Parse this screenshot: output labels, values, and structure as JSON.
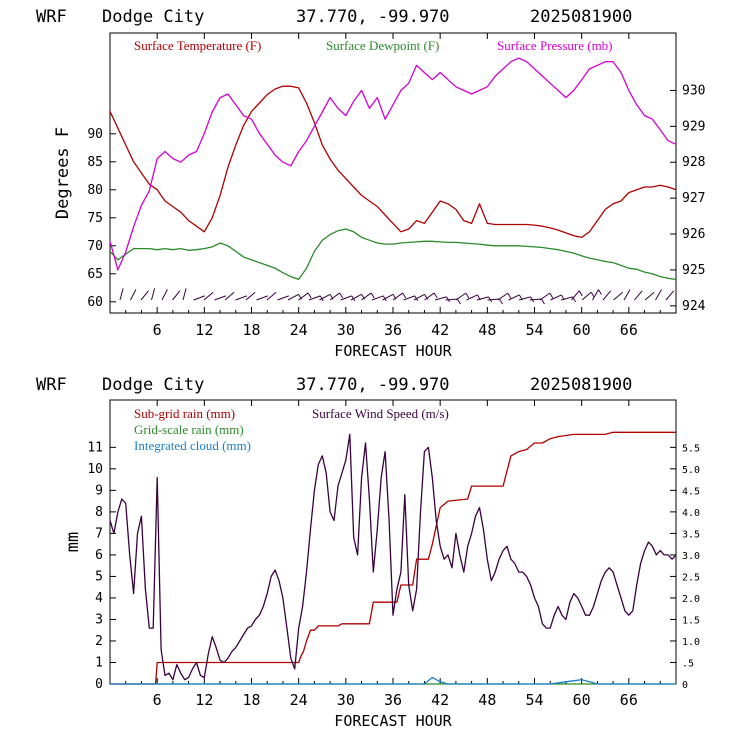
{
  "colors": {
    "temperature": "#b00000",
    "dewpoint": "#2a8a2a",
    "pressure": "#d400d4",
    "subgrid_rain": "#b00000",
    "gridscale_rain": "#2a8a2a",
    "cloud": "#1a7fd0",
    "wind": "#3a0040",
    "axis": "#000000"
  },
  "chart_data": [
    {
      "type": "line",
      "header": {
        "model": "WRF",
        "station": "Dodge City",
        "coords": "37.770, -99.970",
        "run": "2025081900"
      },
      "xlabel": "FORECAST HOUR",
      "ylabel": "Degrees F",
      "xlim": [
        0,
        72
      ],
      "ylim": [
        58,
        108
      ],
      "y2lim": [
        923.8,
        931.6
      ],
      "xticks": [
        6,
        12,
        18,
        24,
        30,
        36,
        42,
        48,
        54,
        60,
        66
      ],
      "xtick_labels": [
        "6",
        "12",
        "18",
        "24",
        "30",
        "36",
        "42",
        "48",
        "54",
        "60",
        "66"
      ],
      "yticks": [
        60,
        65,
        70,
        75,
        80,
        85,
        90
      ],
      "ytick_labels": [
        "60",
        "65",
        "70",
        "75",
        "80",
        "85",
        "90"
      ],
      "y2ticks": [
        924,
        925,
        926,
        927,
        928,
        929,
        930
      ],
      "y2tick_labels": [
        "924",
        "925",
        "926",
        "927",
        "928",
        "929",
        "930"
      ],
      "legend": [
        {
          "label": "Surface Temperature (F)",
          "color_key": "temperature"
        },
        {
          "label": "Surface Dewpoint (F)",
          "color_key": "dewpoint"
        },
        {
          "label": "Surface Pressure (mb)",
          "color_key": "pressure"
        }
      ],
      "series": [
        {
          "name": "Surface Temperature (F)",
          "axis": "left",
          "color_key": "temperature",
          "x": [
            0,
            1,
            2,
            3,
            4,
            5,
            6,
            7,
            8,
            9,
            10,
            11,
            12,
            13,
            14,
            15,
            16,
            17,
            18,
            19,
            20,
            21,
            22,
            23,
            24,
            25,
            26,
            27,
            28,
            29,
            30,
            31,
            32,
            33,
            34,
            35,
            36,
            37,
            38,
            39,
            40,
            41,
            42,
            43,
            44,
            45,
            46,
            47,
            48,
            49,
            50,
            51,
            52,
            53,
            54,
            55,
            56,
            57,
            58,
            59,
            60,
            61,
            62,
            63,
            64,
            65,
            66,
            67,
            68,
            69,
            70,
            71,
            72
          ],
          "values": [
            94,
            91,
            88,
            85,
            83,
            81,
            80,
            78,
            77,
            76,
            74.5,
            73.5,
            72.5,
            75,
            79,
            84,
            88,
            91.5,
            94,
            95.5,
            97,
            98,
            98.5,
            98.5,
            98.2,
            95.5,
            92,
            88,
            85.5,
            83.5,
            82,
            80.5,
            79,
            78,
            77,
            75.5,
            74,
            72.5,
            73,
            74.5,
            74,
            76,
            78,
            77.5,
            76.5,
            74.5,
            74,
            77.5,
            74,
            73.8,
            73.8,
            73.8,
            73.8,
            73.8,
            73.7,
            73.5,
            73.2,
            72.8,
            72.3,
            71.8,
            71.5,
            72.5,
            74.5,
            76.5,
            77.5,
            78,
            79.5,
            80,
            80.5,
            80.5,
            80.8,
            80.5,
            80
          ]
        },
        {
          "name": "Surface Dewpoint (F)",
          "axis": "left",
          "color_key": "dewpoint",
          "x": [
            0,
            1,
            2,
            3,
            4,
            5,
            6,
            7,
            8,
            9,
            10,
            11,
            12,
            13,
            14,
            15,
            16,
            17,
            18,
            19,
            20,
            21,
            22,
            23,
            24,
            25,
            26,
            27,
            28,
            29,
            30,
            31,
            32,
            33,
            34,
            35,
            36,
            37,
            38,
            39,
            40,
            41,
            42,
            43,
            44,
            45,
            46,
            47,
            48,
            49,
            50,
            51,
            52,
            53,
            54,
            55,
            56,
            57,
            58,
            59,
            60,
            61,
            62,
            63,
            64,
            65,
            66,
            67,
            68,
            69,
            70,
            71,
            72
          ],
          "values": [
            69,
            67.5,
            68.5,
            69.5,
            69.5,
            69.5,
            69.3,
            69.5,
            69.3,
            69.5,
            69.2,
            69.3,
            69.5,
            69.8,
            70.5,
            70,
            69,
            68,
            67.5,
            67,
            66.5,
            66,
            65.2,
            64.5,
            64,
            66,
            69,
            71,
            72,
            72.7,
            73,
            72.5,
            71.5,
            71,
            70.5,
            70.3,
            70.3,
            70.5,
            70.6,
            70.7,
            70.8,
            70.8,
            70.7,
            70.6,
            70.6,
            70.5,
            70.4,
            70.3,
            70.1,
            70.0,
            70.0,
            70.0,
            70.0,
            69.9,
            69.8,
            69.7,
            69.5,
            69.3,
            69,
            68.7,
            68.2,
            67.8,
            67.5,
            67.2,
            67,
            66.5,
            66,
            65.8,
            65.3,
            65,
            64.5,
            64.2,
            64
          ]
        },
        {
          "name": "Surface Pressure (mb)",
          "axis": "right",
          "color_key": "pressure",
          "x": [
            0,
            1,
            2,
            3,
            4,
            5,
            6,
            7,
            8,
            9,
            10,
            11,
            12,
            13,
            14,
            15,
            16,
            17,
            18,
            19,
            20,
            21,
            22,
            23,
            24,
            25,
            26,
            27,
            28,
            29,
            30,
            31,
            32,
            33,
            34,
            35,
            36,
            37,
            38,
            39,
            40,
            41,
            42,
            43,
            44,
            45,
            46,
            47,
            48,
            49,
            50,
            51,
            52,
            53,
            54,
            55,
            56,
            57,
            58,
            59,
            60,
            61,
            62,
            63,
            64,
            65,
            66,
            67,
            68,
            69,
            70,
            71,
            72
          ],
          "values": [
            925.8,
            925,
            925.5,
            926.2,
            926.8,
            927.2,
            928.1,
            928.3,
            928.1,
            928.0,
            928.2,
            928.3,
            928.8,
            929.4,
            929.8,
            929.9,
            929.6,
            929.3,
            929.2,
            928.8,
            928.5,
            928.2,
            928.0,
            927.9,
            928.3,
            928.6,
            929.0,
            929.4,
            929.8,
            929.5,
            929.3,
            929.7,
            930.0,
            929.5,
            929.8,
            929.2,
            929.6,
            930.0,
            930.2,
            930.7,
            930.5,
            930.3,
            930.5,
            930.3,
            930.1,
            930.0,
            929.9,
            930.0,
            930.1,
            930.4,
            930.6,
            930.8,
            930.9,
            930.8,
            930.6,
            930.4,
            930.2,
            930.0,
            929.8,
            930.0,
            930.3,
            930.6,
            930.7,
            930.8,
            930.8,
            930.5,
            930.0,
            929.6,
            929.3,
            929.2,
            928.9,
            928.6,
            928.5
          ]
        }
      ]
    },
    {
      "type": "line",
      "header": {
        "model": "WRF",
        "station": "Dodge City",
        "coords": "37.770, -99.970",
        "run": "2025081900"
      },
      "xlabel": "FORECAST HOUR",
      "ylabel": "mm",
      "xlim": [
        0,
        72
      ],
      "ylim": [
        0,
        13.2
      ],
      "y2lim": [
        0,
        6.6
      ],
      "xticks": [
        6,
        12,
        18,
        24,
        30,
        36,
        42,
        48,
        54,
        60,
        66
      ],
      "xtick_labels": [
        "6",
        "12",
        "18",
        "24",
        "30",
        "36",
        "42",
        "48",
        "54",
        "60",
        "66"
      ],
      "yticks": [
        0,
        1,
        2,
        3,
        4,
        5,
        6,
        7,
        8,
        9,
        10,
        11
      ],
      "ytick_labels": [
        "0",
        "1",
        "2",
        "3",
        "4",
        "5",
        "6",
        "7",
        "8",
        "9",
        "10",
        "11"
      ],
      "y2ticks": [
        0,
        0.5,
        1.0,
        1.5,
        2.0,
        2.5,
        3.0,
        3.5,
        4.0,
        4.5,
        5.0,
        5.5
      ],
      "y2tick_labels": [
        "0",
        ".5",
        "1.0",
        "1.5",
        "2.0",
        "2.5",
        "3.0",
        "3.5",
        "4.0",
        "4.5",
        "5.0",
        "5.5"
      ],
      "legend": [
        {
          "label": "Sub-grid rain (mm)",
          "color_key": "subgrid_rain"
        },
        {
          "label": "Surface Wind Speed (m/s)",
          "color_key": "wind"
        },
        {
          "label": "Grid-scale rain (mm)",
          "color_key": "gridscale_rain"
        },
        {
          "label": "Integrated cloud (mm)",
          "color_key": "cloud"
        }
      ],
      "series": [
        {
          "name": "Sub-grid rain (mm)",
          "axis": "left",
          "color_key": "subgrid_rain",
          "x": [
            0,
            5.8,
            6,
            23.5,
            24,
            24.3,
            24.6,
            25,
            25.5,
            26,
            26.5,
            29,
            29.5,
            33,
            33.5,
            36.5,
            37,
            38.5,
            39,
            40.5,
            41,
            42,
            43,
            45.5,
            46,
            50,
            51,
            52,
            53,
            54,
            55,
            56,
            57,
            58,
            59,
            60,
            62,
            63,
            64,
            65,
            72
          ],
          "values": [
            0,
            0,
            1,
            1,
            1,
            1.3,
            1.5,
            2,
            2.5,
            2.5,
            2.7,
            2.7,
            2.8,
            2.8,
            3.8,
            3.8,
            4.6,
            4.6,
            5.8,
            5.8,
            6.5,
            8.2,
            8.5,
            8.6,
            9.2,
            9.2,
            10.6,
            10.8,
            10.9,
            11.2,
            11.2,
            11.4,
            11.5,
            11.55,
            11.6,
            11.6,
            11.6,
            11.6,
            11.7,
            11.7,
            11.7
          ]
        },
        {
          "name": "Grid-scale rain (mm)",
          "axis": "left",
          "color_key": "gridscale_rain",
          "x": [
            0,
            72
          ],
          "values": [
            0,
            0
          ]
        },
        {
          "name": "Integrated cloud (mm)",
          "axis": "left",
          "color_key": "cloud",
          "x": [
            0,
            40,
            41,
            42,
            43,
            44,
            56,
            58,
            60,
            61,
            62,
            72
          ],
          "values": [
            0,
            0,
            0.3,
            0.1,
            0,
            0,
            0,
            0.1,
            0.2,
            0.1,
            0,
            0
          ]
        },
        {
          "name": "Surface Wind Speed (m/s)",
          "axis": "right",
          "color_key": "wind",
          "x": [
            0,
            0.5,
            1,
            1.5,
            2,
            2.5,
            3,
            3.5,
            4,
            4.5,
            5,
            5.5,
            6,
            6.5,
            7,
            7.5,
            8,
            8.5,
            9,
            9.5,
            10,
            10.5,
            11,
            11.5,
            12,
            12.5,
            13,
            13.5,
            14,
            14.5,
            15,
            15.5,
            16,
            16.5,
            17,
            17.5,
            18,
            18.5,
            19,
            19.5,
            20,
            20.5,
            21,
            21.5,
            22,
            22.5,
            23,
            23.5,
            24,
            24.5,
            25,
            25.5,
            26,
            26.5,
            27,
            27.5,
            28,
            28.5,
            29,
            29.5,
            30,
            30.5,
            31,
            31.5,
            32,
            32.5,
            33,
            33.5,
            34,
            34.5,
            35,
            35.5,
            36,
            36.5,
            37,
            37.5,
            38,
            38.5,
            39,
            39.5,
            40,
            40.5,
            41,
            41.5,
            42,
            42.5,
            43,
            43.5,
            44,
            44.5,
            45,
            45.5,
            46,
            46.5,
            47,
            47.5,
            48,
            48.5,
            49,
            49.5,
            50,
            50.5,
            51,
            51.5,
            52,
            52.5,
            53,
            53.5,
            54,
            54.5,
            55,
            55.5,
            56,
            56.5,
            57,
            57.5,
            58,
            58.5,
            59,
            59.5,
            60,
            60.5,
            61,
            61.5,
            62,
            62.5,
            63,
            63.5,
            64,
            64.5,
            65,
            65.5,
            66,
            66.5,
            67,
            67.5,
            68,
            68.5,
            69,
            69.5,
            70,
            70.5,
            71,
            71.5,
            72
          ],
          "values": [
            3.8,
            3.5,
            4.0,
            4.3,
            4.2,
            3.0,
            2.1,
            3.5,
            3.9,
            2.2,
            1.3,
            1.3,
            4.8,
            0.8,
            0.2,
            0.25,
            0.1,
            0.45,
            0.25,
            0.1,
            0.15,
            0.35,
            0.5,
            0.2,
            0.15,
            0.7,
            1.1,
            0.85,
            0.55,
            0.5,
            0.6,
            0.75,
            0.85,
            1.0,
            1.15,
            1.3,
            1.35,
            1.5,
            1.6,
            1.8,
            2.1,
            2.5,
            2.65,
            2.4,
            2.0,
            1.3,
            0.6,
            0.35,
            1.3,
            1.8,
            2.6,
            3.6,
            4.5,
            5.1,
            5.3,
            4.9,
            4.0,
            3.8,
            4.6,
            4.9,
            5.2,
            5.8,
            3.4,
            3.0,
            4.8,
            5.6,
            4.3,
            2.6,
            3.6,
            4.8,
            5.4,
            3.8,
            1.6,
            2.2,
            2.6,
            4.4,
            2.3,
            1.7,
            2.2,
            4.0,
            5.4,
            5.5,
            4.8,
            3.8,
            3.2,
            2.9,
            3.0,
            2.7,
            3.5,
            3.0,
            2.6,
            3.2,
            3.5,
            3.9,
            4.1,
            3.6,
            2.9,
            2.4,
            2.6,
            2.9,
            3.1,
            3.2,
            2.9,
            2.8,
            2.6,
            2.6,
            2.5,
            2.3,
            2.0,
            1.8,
            1.4,
            1.3,
            1.3,
            1.6,
            1.8,
            1.6,
            1.5,
            1.9,
            2.1,
            2.0,
            1.8,
            1.6,
            1.6,
            1.8,
            2.1,
            2.4,
            2.6,
            2.7,
            2.6,
            2.3,
            2.0,
            1.7,
            1.6,
            1.7,
            2.3,
            2.8,
            3.1,
            3.3,
            3.2,
            3.0,
            3.1,
            3.0,
            3.0,
            2.9,
            3.0
          ]
        }
      ]
    }
  ]
}
